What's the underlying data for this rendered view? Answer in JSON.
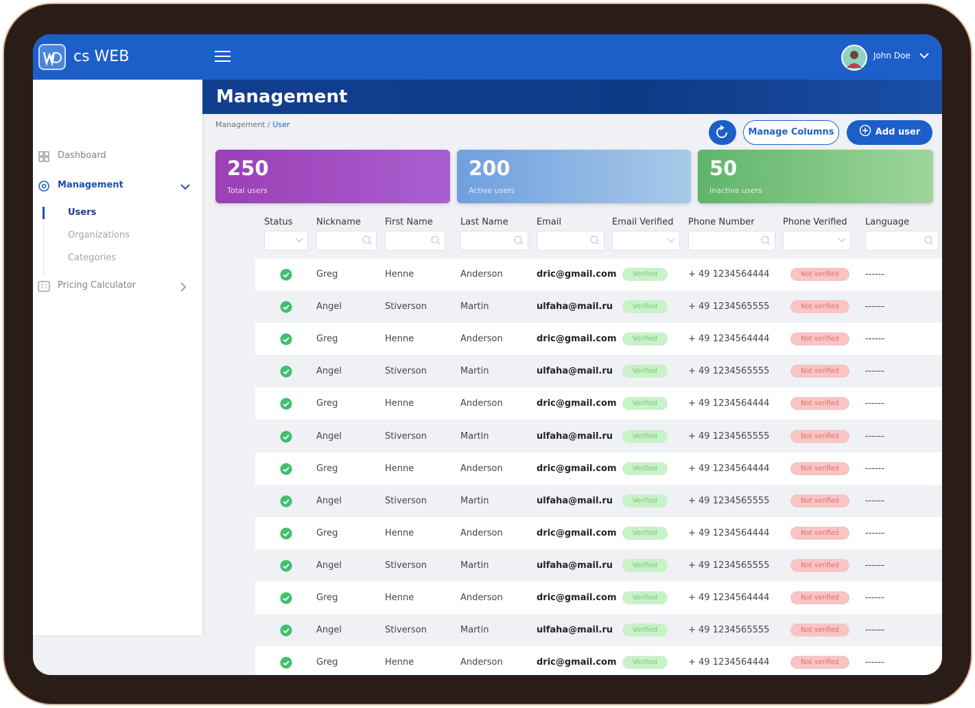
{
  "app": {
    "logo": "cs WEB",
    "user_name": "John Doe"
  },
  "sidebar": {
    "items": [
      {
        "label": "Dashboard"
      },
      {
        "label": "Management",
        "children": [
          "Users",
          "Organizations",
          "Categories"
        ]
      },
      {
        "label": "Pricing Calculator"
      }
    ]
  },
  "header": {
    "title": "Management"
  },
  "breadcrumb": {
    "parent": "Management",
    "separator": "/",
    "current": "User"
  },
  "buttons": {
    "manage_columns": "Manage Columns",
    "add_user": "Add user"
  },
  "stats": [
    {
      "value": 250,
      "label": "Total users"
    },
    {
      "value": 200,
      "label": "Active users"
    },
    {
      "value": 50,
      "label": "Inactive users"
    }
  ],
  "table": {
    "columns": [
      "Status",
      "Nickname",
      "First Name",
      "Last Name",
      "Email",
      "Email Verified",
      "Phone Number",
      "Phone Verified",
      "Language"
    ],
    "rows": [
      [
        "Greg",
        "Henne",
        "Anderson",
        "dric@gmail.com",
        "Verified",
        "+ 49 1234564444",
        "Not verified",
        "------"
      ],
      [
        "Angel",
        "Stiverson",
        "Martin",
        "ulfaha@mail.ru",
        "Verified",
        "+ 49 1234565555",
        "Not verified",
        "------"
      ],
      [
        "Greg",
        "Henne",
        "Anderson",
        "dric@gmail.com",
        "Verified",
        "+ 49 1234564444",
        "Not verified",
        "------"
      ],
      [
        "Angel",
        "Stiverson",
        "Martin",
        "ulfaha@mail.ru",
        "Verified",
        "+ 49 1234565555",
        "Not verified",
        "------"
      ],
      [
        "Greg",
        "Henne",
        "Anderson",
        "dric@gmail.com",
        "Verified",
        "+ 49 1234564444",
        "Not verified",
        "------"
      ],
      [
        "Angel",
        "Stiverson",
        "Martin",
        "ulfaha@mail.ru",
        "Verified",
        "+ 49 1234565555",
        "Not verified",
        "------"
      ],
      [
        "Greg",
        "Henne",
        "Anderson",
        "dric@gmail.com",
        "Verified",
        "+ 49 1234564444",
        "Not verified",
        "------"
      ],
      [
        "Angel",
        "Stiverson",
        "Martin",
        "ulfaha@mail.ru",
        "Verified",
        "+ 49 1234565555",
        "Not verified",
        "------"
      ],
      [
        "Greg",
        "Henne",
        "Anderson",
        "dric@gmail.com",
        "Verified",
        "+ 49 1234564444",
        "Not verified",
        "------"
      ],
      [
        "Angel",
        "Stiverson",
        "Martin",
        "ulfaha@mail.ru",
        "Verified",
        "+ 49 1234565555",
        "Not verified",
        "------"
      ],
      [
        "Greg",
        "Henne",
        "Anderson",
        "dric@gmail.com",
        "Verified",
        "+ 49 1234564444",
        "Not verified",
        "------"
      ],
      [
        "Angel",
        "Stiverson",
        "Martin",
        "ulfaha@mail.ru",
        "Verified",
        "+ 49 1234565555",
        "Not verified",
        "------"
      ],
      [
        "Greg",
        "Henne",
        "Anderson",
        "dric@gmail.com",
        "Verified",
        "+ 49 1234564444",
        "Not verified",
        "------"
      ]
    ]
  }
}
